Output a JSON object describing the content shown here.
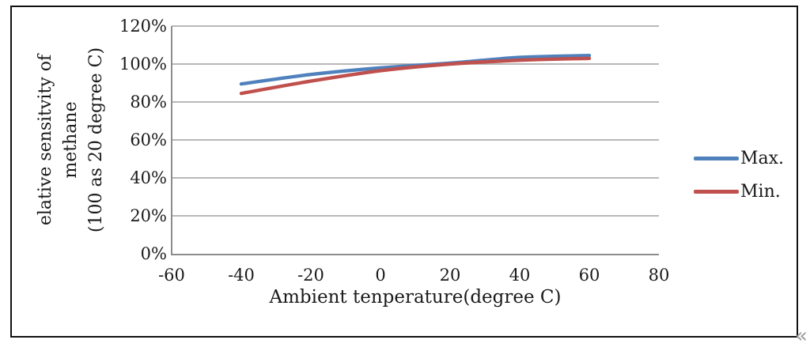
{
  "chart_data": {
    "type": "line",
    "title": "",
    "xlabel": "Ambient tenperature(degree C)",
    "ylabel_lines": [
      "elative sensitvity of",
      "methane",
      "(100 as 20 degree C)"
    ],
    "x": [
      -40,
      -20,
      0,
      20,
      40,
      60
    ],
    "series": [
      {
        "name": "Max.",
        "color": "#4f81bd",
        "values": [
          89.5,
          94.5,
          98,
          100.5,
          103.5,
          104.5
        ]
      },
      {
        "name": "Min.",
        "color": "#c0504d",
        "values": [
          84.5,
          91,
          96.5,
          100,
          102,
          103
        ]
      }
    ],
    "xlim": [
      -60,
      80
    ],
    "ylim": [
      0,
      120
    ],
    "x_tick_values": [
      -60,
      -40,
      -20,
      0,
      20,
      40,
      60,
      80
    ],
    "x_tick_labels": [
      "-60",
      "-40",
      "-20",
      "0",
      "20",
      "40",
      "60",
      "80"
    ],
    "y_tick_values": [
      0,
      20,
      40,
      60,
      80,
      100,
      120
    ],
    "y_tick_labels": [
      "0%",
      "20%",
      "40%",
      "60%",
      "80%",
      "100%",
      "120%"
    ],
    "grid": "horizontal",
    "legend_position": "right",
    "legend": [
      "Max.",
      "Min."
    ],
    "line_smoothing": true
  },
  "colors": {
    "series_max": "#4f81bd",
    "series_min": "#c0504d",
    "axis": "#8c8c8c",
    "grid": "#a0a0a0",
    "text": "#1a1a1a",
    "frame_border": "#111111"
  },
  "decoration": {
    "corner_glyph": "«"
  }
}
